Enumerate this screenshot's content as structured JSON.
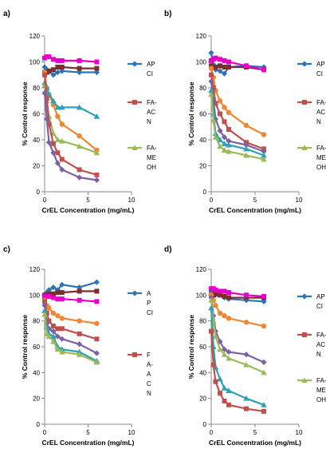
{
  "chart_data": [
    {
      "panel_label": "a)",
      "type": "line",
      "xlabel": "CrEL Concentration (mg/mL)",
      "ylabel": "% Control response",
      "xlim": [
        0,
        10
      ],
      "ylim": [
        0,
        120
      ],
      "xticks": [
        0,
        5,
        10
      ],
      "yticks": [
        0,
        20,
        40,
        60,
        80,
        100,
        120
      ],
      "legend": [
        {
          "lines": [
            "AP",
            "CI"
          ],
          "color": "#2E75B6",
          "marker": "diamond"
        },
        {
          "lines": [
            "FA-",
            "AC",
            "N"
          ],
          "color": "#C0504D",
          "marker": "square"
        },
        {
          "lines": [
            "FA-",
            "ME",
            "OH"
          ],
          "color": "#9BBB59",
          "marker": "triangle"
        }
      ],
      "series": [
        {
          "color": "#2E75B6",
          "marker": "diamond",
          "x": [
            0,
            0.25,
            0.5,
            1,
            1.5,
            2,
            4,
            6
          ],
          "y": [
            96,
            94,
            93,
            90,
            92,
            93,
            92,
            92
          ]
        },
        {
          "color": "#7B2E2E",
          "marker": "square",
          "x": [
            0,
            0.25,
            0.5,
            1,
            1.5,
            2,
            4,
            6
          ],
          "y": [
            92,
            92,
            93,
            94,
            96,
            96,
            95,
            95
          ]
        },
        {
          "color": "#E600C8",
          "marker": "square",
          "x": [
            0,
            0.25,
            0.5,
            1,
            1.5,
            2,
            4,
            6
          ],
          "y": [
            103,
            104,
            104,
            102,
            101,
            101,
            101,
            100
          ]
        },
        {
          "color": "#EE8833",
          "marker": "circle",
          "x": [
            0,
            0.25,
            0.5,
            1,
            1.5,
            2,
            4,
            6
          ],
          "y": [
            92,
            80,
            75,
            67,
            58,
            52,
            43,
            32
          ]
        },
        {
          "color": "#2FA0B6",
          "marker": "triangle",
          "x": [
            0,
            0.25,
            0.5,
            1,
            1.5,
            2,
            4,
            6
          ],
          "y": [
            84,
            80,
            75,
            70,
            65,
            65,
            65,
            58
          ]
        },
        {
          "color": "#9BBB59",
          "marker": "triangle",
          "x": [
            0,
            0.25,
            0.5,
            1,
            1.5,
            2,
            4,
            6
          ],
          "y": [
            82,
            70,
            58,
            45,
            40,
            39,
            35,
            30
          ]
        },
        {
          "color": "#C0504D",
          "marker": "square",
          "x": [
            0,
            0.25,
            0.5,
            1,
            1.5,
            2,
            4,
            6
          ],
          "y": [
            90,
            72,
            52,
            37,
            30,
            25,
            17,
            13
          ]
        },
        {
          "color": "#7D62A3",
          "marker": "diamond",
          "x": [
            0,
            0.25,
            0.5,
            1,
            1.5,
            2,
            4,
            6
          ],
          "y": [
            76,
            56,
            38,
            30,
            22,
            17,
            11,
            9
          ]
        }
      ]
    },
    {
      "panel_label": "b)",
      "type": "line",
      "xlabel": "CrEL Concentration (mg/mL)",
      "ylabel": "% Control response",
      "xlim": [
        0,
        10
      ],
      "ylim": [
        0,
        120
      ],
      "xticks": [
        0,
        5,
        10
      ],
      "yticks": [
        0,
        20,
        40,
        60,
        80,
        100,
        120
      ],
      "legend": [
        {
          "lines": [
            "AP",
            "CI"
          ],
          "color": "#2E75B6",
          "marker": "diamond"
        },
        {
          "lines": [
            "FA-",
            "AC",
            "N"
          ],
          "color": "#C0504D",
          "marker": "square"
        },
        {
          "lines": [
            "FA-",
            "ME",
            "OH"
          ],
          "color": "#9BBB59",
          "marker": "triangle"
        }
      ],
      "series": [
        {
          "color": "#2E75B6",
          "marker": "diamond",
          "x": [
            0,
            0.25,
            0.5,
            1,
            1.5,
            2,
            4,
            6
          ],
          "y": [
            107,
            98,
            94,
            93,
            91,
            96,
            97,
            96
          ]
        },
        {
          "color": "#7B2E2E",
          "marker": "square",
          "x": [
            0,
            0.25,
            0.5,
            1,
            1.5,
            2,
            4,
            6
          ],
          "y": [
            97,
            96,
            96,
            97,
            96,
            96,
            96,
            94
          ]
        },
        {
          "color": "#E600C8",
          "marker": "square",
          "x": [
            0,
            0.25,
            0.5,
            1,
            1.5,
            2,
            4,
            6
          ],
          "y": [
            101,
            102,
            103,
            102,
            101,
            100,
            97,
            94
          ]
        },
        {
          "color": "#EE8833",
          "marker": "circle",
          "x": [
            0,
            0.25,
            0.5,
            1,
            1.5,
            2,
            4,
            6
          ],
          "y": [
            95,
            88,
            78,
            70,
            65,
            61,
            51,
            44
          ]
        },
        {
          "color": "#C0504D",
          "marker": "square",
          "x": [
            0,
            0.25,
            0.5,
            1,
            1.5,
            2,
            4,
            6
          ],
          "y": [
            90,
            80,
            68,
            60,
            54,
            48,
            38,
            33
          ]
        },
        {
          "color": "#7D62A3",
          "marker": "diamond",
          "x": [
            0,
            0.25,
            0.5,
            1,
            1.5,
            2,
            4,
            6
          ],
          "y": [
            85,
            70,
            56,
            47,
            42,
            39,
            36,
            31
          ]
        },
        {
          "color": "#2FA0B6",
          "marker": "triangle",
          "x": [
            0,
            0.25,
            0.5,
            1,
            1.5,
            2,
            4,
            6
          ],
          "y": [
            78,
            60,
            45,
            40,
            37,
            36,
            33,
            28
          ]
        },
        {
          "color": "#9BBB59",
          "marker": "triangle",
          "x": [
            0,
            0.25,
            0.5,
            1,
            1.5,
            2,
            4,
            6
          ],
          "y": [
            75,
            55,
            42,
            35,
            32,
            31,
            28,
            25
          ]
        }
      ]
    },
    {
      "panel_label": "c)",
      "type": "line",
      "xlabel": "CrEL Concentration (mg/mL)",
      "ylabel": "% Control response",
      "xlim": [
        0,
        10
      ],
      "ylim": [
        0,
        120
      ],
      "xticks": [
        0,
        5,
        10
      ],
      "yticks": [
        0,
        20,
        40,
        60,
        80,
        100,
        120
      ],
      "legend": [
        {
          "lines": [
            "A",
            "P",
            "CI"
          ],
          "color": "#2E75B6",
          "marker": "diamond"
        },
        {
          "lines": [
            "F",
            "A-",
            "A",
            "C",
            "N"
          ],
          "color": "#C0504D",
          "marker": "square"
        }
      ],
      "series": [
        {
          "color": "#2E75B6",
          "marker": "diamond",
          "x": [
            0,
            0.25,
            0.5,
            1,
            1.5,
            2,
            4,
            6
          ],
          "y": [
            100,
            102,
            104,
            106,
            104,
            108,
            106,
            110
          ]
        },
        {
          "color": "#7B2E2E",
          "marker": "square",
          "x": [
            0,
            0.25,
            0.5,
            1,
            1.5,
            2,
            4,
            6
          ],
          "y": [
            100,
            100,
            101,
            101,
            102,
            102,
            103,
            103
          ]
        },
        {
          "color": "#E600C8",
          "marker": "square",
          "x": [
            0,
            0.25,
            0.5,
            1,
            1.5,
            2,
            4,
            6
          ],
          "y": [
            99,
            99,
            99,
            98,
            97,
            97,
            96,
            95
          ]
        },
        {
          "color": "#EE8833",
          "marker": "circle",
          "x": [
            0,
            0.25,
            0.5,
            1,
            1.5,
            2,
            4,
            6
          ],
          "y": [
            96,
            92,
            90,
            86,
            84,
            82,
            80,
            78
          ]
        },
        {
          "color": "#C0504D",
          "marker": "square",
          "x": [
            0,
            0.25,
            0.5,
            1,
            1.5,
            2,
            4,
            6
          ],
          "y": [
            95,
            86,
            80,
            76,
            74,
            74,
            70,
            66
          ]
        },
        {
          "color": "#7D62A3",
          "marker": "diamond",
          "x": [
            0,
            0.25,
            0.5,
            1,
            1.5,
            2,
            4,
            6
          ],
          "y": [
            92,
            78,
            74,
            72,
            68,
            66,
            62,
            55
          ]
        },
        {
          "color": "#2FA0B6",
          "marker": "triangle",
          "x": [
            0,
            0.25,
            0.5,
            1,
            1.5,
            2,
            4,
            6
          ],
          "y": [
            88,
            75,
            70,
            68,
            60,
            58,
            56,
            49
          ]
        },
        {
          "color": "#9BBB59",
          "marker": "triangle",
          "x": [
            0,
            0.25,
            0.5,
            1,
            1.5,
            2,
            4,
            6
          ],
          "y": [
            85,
            70,
            68,
            64,
            58,
            56,
            54,
            48
          ]
        }
      ]
    },
    {
      "panel_label": "d)",
      "type": "line",
      "xlabel": "CrEL Concentration (mg/mL)",
      "ylabel": "% Control response",
      "xlim": [
        0,
        10
      ],
      "ylim": [
        0,
        120
      ],
      "xticks": [
        0,
        5,
        10
      ],
      "yticks": [
        0,
        20,
        40,
        60,
        80,
        100,
        120
      ],
      "legend": [
        {
          "lines": [
            "AP",
            "CI"
          ],
          "color": "#2E75B6",
          "marker": "diamond"
        },
        {
          "lines": [
            "FA-",
            "AC",
            "N"
          ],
          "color": "#C0504D",
          "marker": "square"
        },
        {
          "lines": [
            "FA-",
            "ME",
            "OH"
          ],
          "color": "#9BBB59",
          "marker": "triangle"
        }
      ],
      "series": [
        {
          "color": "#2E75B6",
          "marker": "diamond",
          "x": [
            0,
            0.25,
            0.5,
            1,
            1.5,
            2,
            4,
            6
          ],
          "y": [
            103,
            104,
            100,
            100,
            98,
            97,
            96,
            95
          ]
        },
        {
          "color": "#7B2E2E",
          "marker": "square",
          "x": [
            0,
            0.25,
            0.5,
            1,
            1.5,
            2,
            4,
            6
          ],
          "y": [
            100,
            100,
            101,
            100,
            99,
            98,
            98,
            98
          ]
        },
        {
          "color": "#E600C8",
          "marker": "square",
          "x": [
            0,
            0.25,
            0.5,
            1,
            1.5,
            2,
            4,
            6
          ],
          "y": [
            105,
            105,
            104,
            103,
            103,
            102,
            100,
            99
          ]
        },
        {
          "color": "#EE8833",
          "marker": "circle",
          "x": [
            0,
            0.25,
            0.5,
            1,
            1.5,
            2,
            4,
            6
          ],
          "y": [
            100,
            96,
            92,
            86,
            84,
            82,
            79,
            76
          ]
        },
        {
          "color": "#7D62A3",
          "marker": "diamond",
          "x": [
            0,
            0.25,
            0.5,
            1,
            1.5,
            2,
            4,
            6
          ],
          "y": [
            98,
            84,
            72,
            64,
            58,
            56,
            54,
            48
          ]
        },
        {
          "color": "#9BBB59",
          "marker": "triangle",
          "x": [
            0,
            0.25,
            0.5,
            1,
            1.5,
            2,
            4,
            6
          ],
          "y": [
            96,
            80,
            68,
            58,
            54,
            51,
            46,
            40
          ]
        },
        {
          "color": "#2FA0B6",
          "marker": "triangle",
          "x": [
            0,
            0.25,
            0.5,
            1,
            1.5,
            2,
            4,
            6
          ],
          "y": [
            90,
            60,
            44,
            35,
            28,
            26,
            20,
            15
          ]
        },
        {
          "color": "#C0504D",
          "marker": "square",
          "x": [
            0,
            0.25,
            0.5,
            1,
            1.5,
            2,
            4,
            6
          ],
          "y": [
            72,
            46,
            33,
            24,
            18,
            15,
            12,
            10
          ]
        }
      ]
    }
  ]
}
